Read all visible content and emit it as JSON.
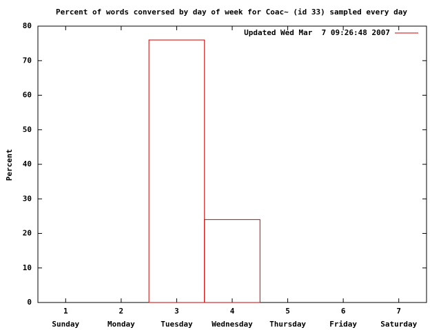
{
  "chart_data": {
    "type": "bar",
    "title": "Percent of words conversed by day of week for Coac~ (id 33) sampled every day",
    "ylabel": "Percent",
    "x": [
      1,
      2,
      3,
      4,
      5,
      6,
      7
    ],
    "categories": [
      "Sunday",
      "Monday",
      "Tuesday",
      "Wednesday",
      "Thursday",
      "Friday",
      "Saturday"
    ],
    "series": [
      {
        "name": "Updated Wed Mar  7 09:26:48 2007",
        "color": "#cc0000",
        "values": [
          0,
          0,
          76,
          24,
          0,
          0,
          0
        ]
      }
    ],
    "xlim": [
      0.5,
      7.5
    ],
    "xticks": [
      1,
      2,
      3,
      4,
      5,
      6,
      7
    ],
    "ylim": [
      0,
      80
    ],
    "yticks": [
      0,
      10,
      20,
      30,
      40,
      50,
      60,
      70,
      80
    ],
    "legend": "upper right"
  }
}
